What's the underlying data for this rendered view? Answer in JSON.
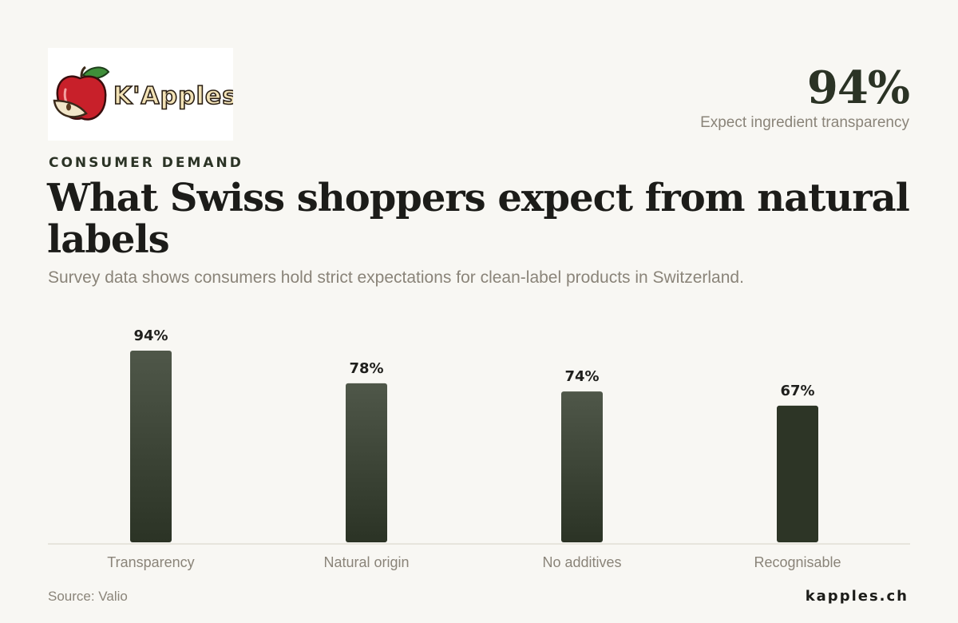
{
  "brand": {
    "logo_text": "K'Apples",
    "site": "kapples.ch"
  },
  "kpi": {
    "value": "94%",
    "label": "Expect ingredient transparency"
  },
  "eyebrow": "CONSUMER DEMAND",
  "colors": {
    "background": "#f8f7f3",
    "bar_top": "#4f5749",
    "bar_bottom": "#2b3325",
    "bar_solid": "#2d3526",
    "apple_red": "#c8202a",
    "leaf_green": "#3f8f3a"
  },
  "chart_data": {
    "type": "bar",
    "title": "What Swiss shoppers expect from natural labels",
    "subtitle": "Survey data shows consumers hold strict expectations for clean-label products in Switzerland.",
    "categories": [
      "Transparency",
      "Natural origin",
      "No additives",
      "Recognisable"
    ],
    "values": [
      94,
      78,
      74,
      67
    ],
    "value_labels": [
      "94%",
      "78%",
      "74%",
      "67%"
    ],
    "unit": "%",
    "ylim": [
      0,
      94
    ],
    "grid": false,
    "source": "Source: Valio"
  }
}
